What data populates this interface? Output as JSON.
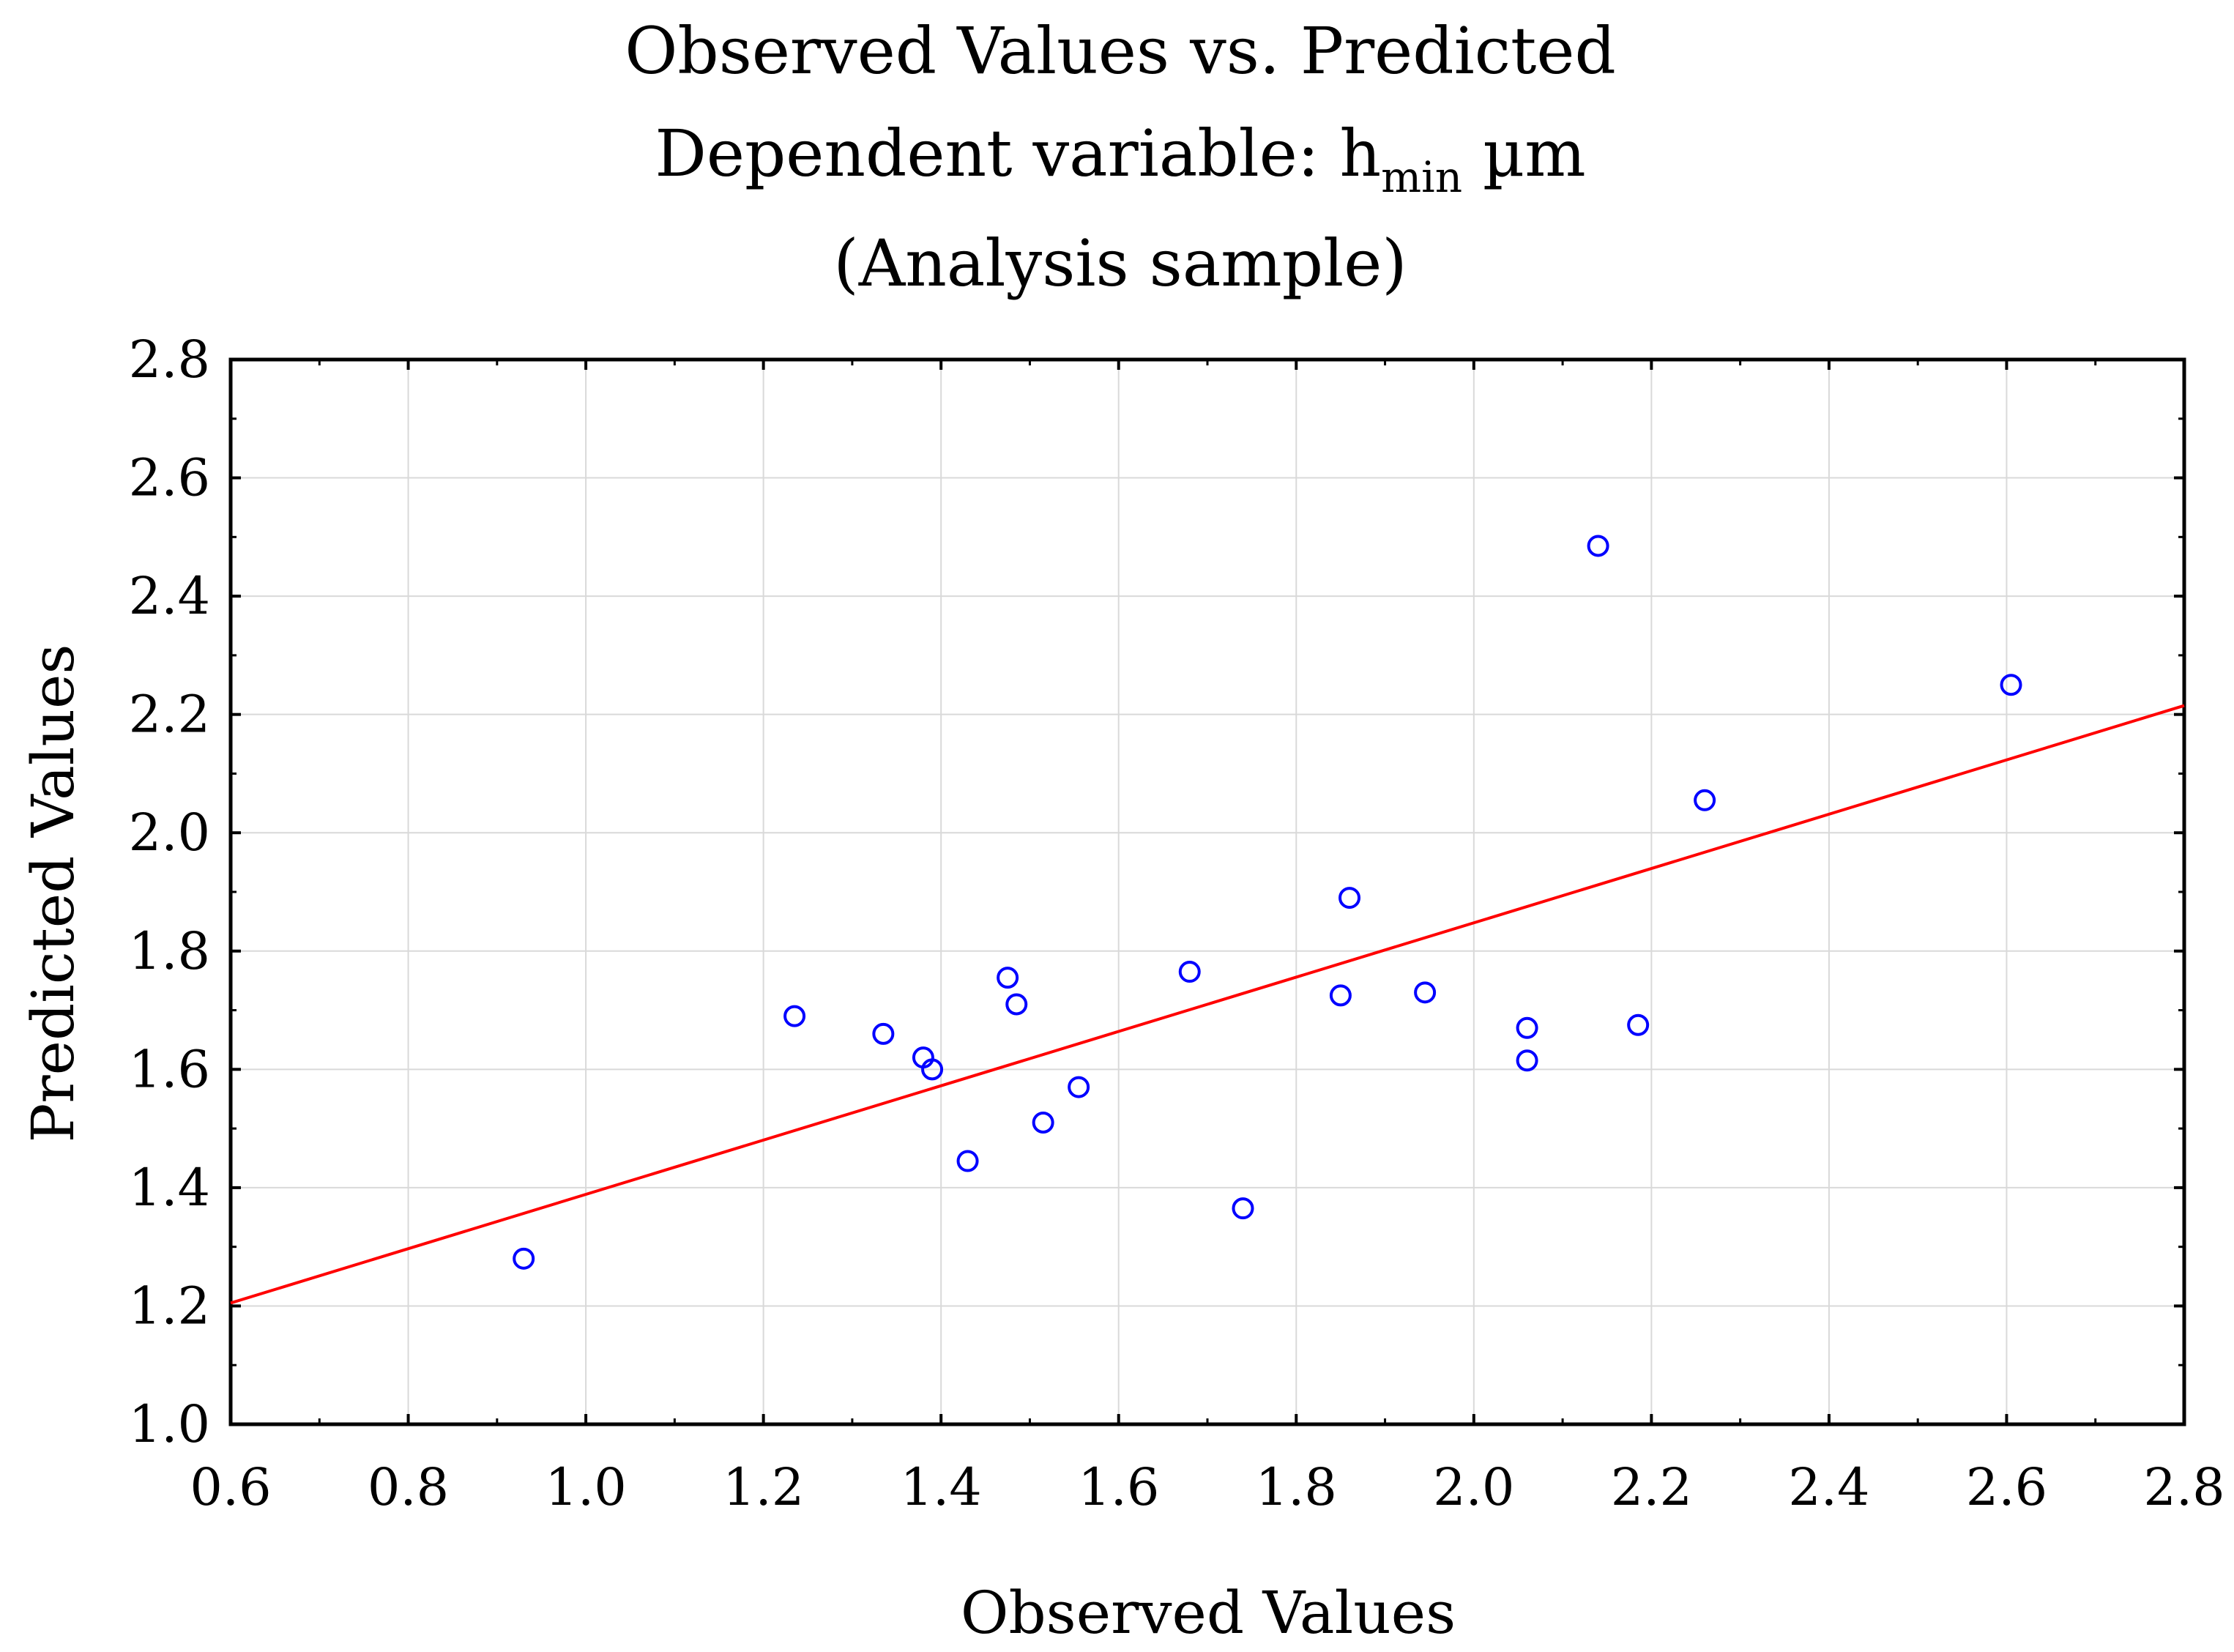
{
  "chart_data": {
    "type": "scatter",
    "title_line1": "Observed Values vs. Predicted",
    "title_line2_prefix": "Dependent variable: h",
    "title_line2_subscript": "min",
    "title_line2_suffix": " µm",
    "title_line3": "(Analysis sample)",
    "xlabel": "Observed Values",
    "ylabel": "Predicted Values",
    "xlim": [
      0.6,
      2.8
    ],
    "ylim": [
      1.0,
      2.8
    ],
    "xticks": [
      "0.6",
      "0.8",
      "1.0",
      "1.2",
      "1.4",
      "1.6",
      "1.8",
      "2.0",
      "2.2",
      "2.4",
      "2.6",
      "2.8"
    ],
    "yticks": [
      "1.0",
      "1.2",
      "1.4",
      "1.6",
      "1.8",
      "2.0",
      "2.2",
      "2.4",
      "2.6",
      "2.8"
    ],
    "grid": true,
    "point_color": "#0000ff",
    "line_color": "#ff0000",
    "points": [
      {
        "x": 0.93,
        "y": 1.28
      },
      {
        "x": 1.235,
        "y": 1.69
      },
      {
        "x": 1.335,
        "y": 1.66
      },
      {
        "x": 1.38,
        "y": 1.62
      },
      {
        "x": 1.39,
        "y": 1.6
      },
      {
        "x": 1.43,
        "y": 1.445
      },
      {
        "x": 1.475,
        "y": 1.755
      },
      {
        "x": 1.485,
        "y": 1.71
      },
      {
        "x": 1.515,
        "y": 1.51
      },
      {
        "x": 1.555,
        "y": 1.57
      },
      {
        "x": 1.68,
        "y": 1.765
      },
      {
        "x": 1.74,
        "y": 1.365
      },
      {
        "x": 1.85,
        "y": 1.725
      },
      {
        "x": 1.86,
        "y": 1.89
      },
      {
        "x": 1.945,
        "y": 1.73
      },
      {
        "x": 2.06,
        "y": 1.67
      },
      {
        "x": 2.06,
        "y": 1.615
      },
      {
        "x": 2.14,
        "y": 2.485
      },
      {
        "x": 2.185,
        "y": 1.675
      },
      {
        "x": 2.26,
        "y": 2.055
      },
      {
        "x": 2.605,
        "y": 2.25
      }
    ],
    "fit_line": {
      "x": [
        0.6,
        2.8
      ],
      "y": [
        1.205,
        2.215
      ]
    }
  }
}
